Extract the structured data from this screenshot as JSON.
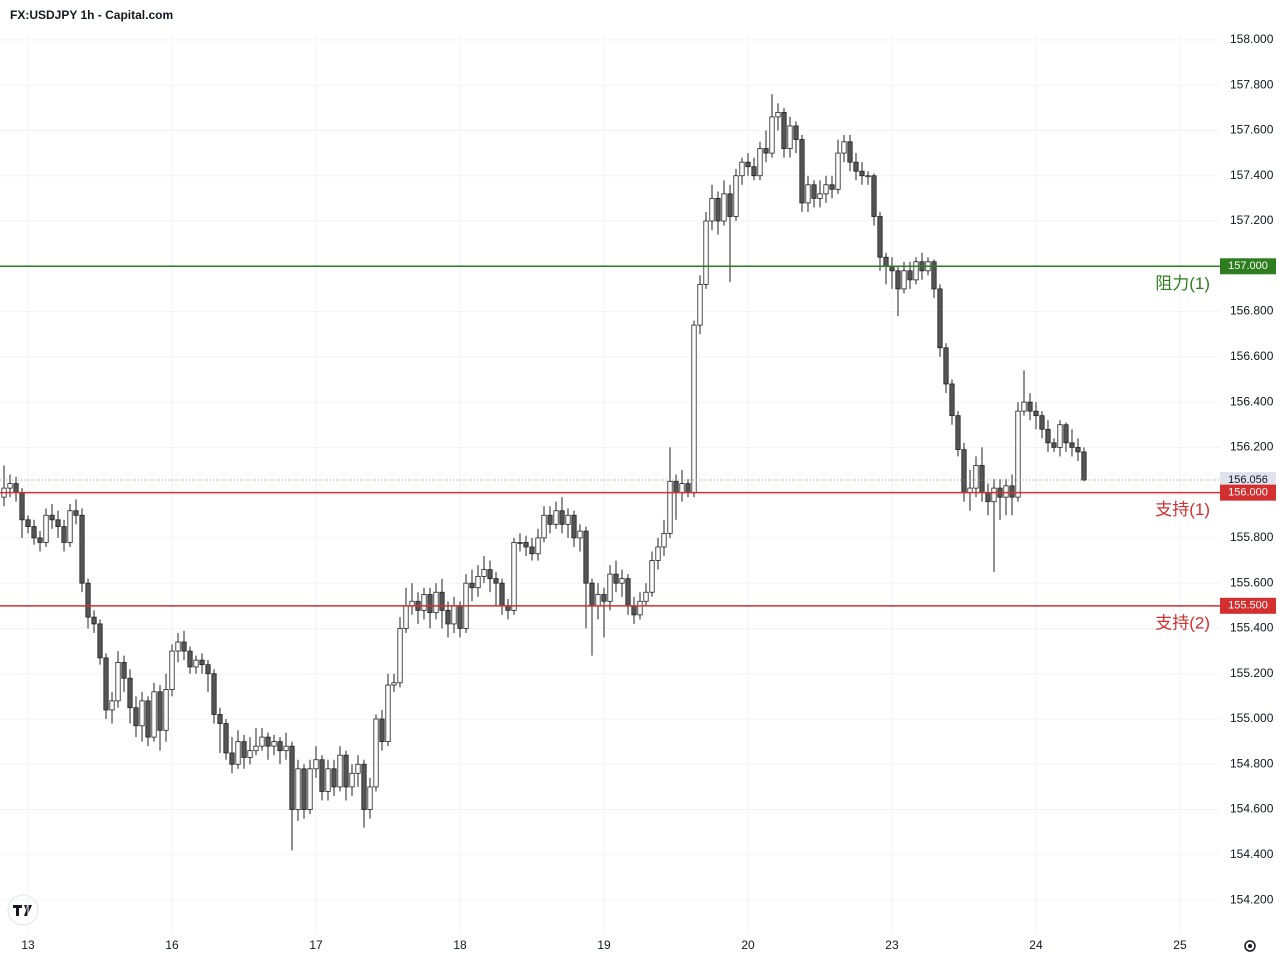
{
  "chart_data": {
    "type": "candlestick",
    "title": "FX:USDJPY 1h - Capital.com",
    "ylim": [
      154.059,
      158.035
    ],
    "yticks": [
      {
        "value": 154.2,
        "label": "154.200"
      },
      {
        "value": 154.4,
        "label": "154.400"
      },
      {
        "value": 154.6,
        "label": "154.600"
      },
      {
        "value": 154.8,
        "label": "154.800"
      },
      {
        "value": 155.0,
        "label": "155.000"
      },
      {
        "value": 155.2,
        "label": "155.200"
      },
      {
        "value": 155.4,
        "label": "155.400"
      },
      {
        "value": 155.6,
        "label": "155.600"
      },
      {
        "value": 155.8,
        "label": "155.800"
      },
      {
        "value": 156.0,
        "label": "156.000"
      },
      {
        "value": 156.2,
        "label": "156.200"
      },
      {
        "value": 156.4,
        "label": "156.400"
      },
      {
        "value": 156.6,
        "label": "156.600"
      },
      {
        "value": 156.8,
        "label": "156.800"
      },
      {
        "value": 157.0,
        "label": "157.000"
      },
      {
        "value": 157.2,
        "label": "157.200"
      },
      {
        "value": 157.4,
        "label": "157.400"
      },
      {
        "value": 157.6,
        "label": "157.600"
      },
      {
        "value": 157.8,
        "label": "157.800"
      },
      {
        "value": 158.0,
        "label": "158.000"
      }
    ],
    "xlim": [
      -0.67,
      202.67
    ],
    "xticks": [
      {
        "value": 4,
        "label": "13"
      },
      {
        "value": 28,
        "label": "16"
      },
      {
        "value": 52,
        "label": "17"
      },
      {
        "value": 76,
        "label": "18"
      },
      {
        "value": 100,
        "label": "19"
      },
      {
        "value": 124,
        "label": "20"
      },
      {
        "value": 148,
        "label": "23"
      },
      {
        "value": 172,
        "label": "24"
      },
      {
        "value": 196,
        "label": "25"
      }
    ],
    "grid": true,
    "up_color": "#ffffff",
    "down_color": "#555555",
    "outline_color": "#222222",
    "levels": [
      {
        "name": "阻力(1)",
        "value": 157.0,
        "label": "157.000",
        "color": "#2e7d1e"
      },
      {
        "name": "支持(1)",
        "value": 156.0,
        "label": "156.000",
        "color": "#d32f2f"
      },
      {
        "name": "支持(2)",
        "value": 155.5,
        "label": "155.500",
        "color": "#d32f2f"
      }
    ],
    "last_price": {
      "value": 156.056,
      "label": "156.056"
    },
    "open": [
      155.98,
      156.02,
      156.04,
      156.0,
      155.88,
      155.85,
      155.8,
      155.78,
      155.9,
      155.88,
      155.85,
      155.78,
      155.92,
      155.9,
      155.6,
      155.45,
      155.42,
      155.27,
      155.04,
      155.08,
      155.25,
      155.18,
      155.05,
      154.97,
      155.08,
      154.92,
      155.12,
      154.95,
      155.13,
      155.3,
      155.34,
      155.3,
      155.23,
      155.26,
      155.24,
      155.2,
      155.02,
      154.98,
      154.85,
      154.8,
      154.9,
      154.83,
      154.86,
      154.88,
      154.92,
      154.88,
      154.9,
      154.86,
      154.88,
      154.6,
      154.78,
      154.6,
      154.78,
      154.82,
      154.68,
      154.78,
      154.7,
      154.84,
      154.7,
      154.76,
      154.8,
      154.6,
      154.7,
      155.0,
      154.9,
      155.15,
      155.16,
      155.4,
      155.5,
      155.52,
      155.48,
      155.55,
      155.47,
      155.56,
      155.48,
      155.42,
      155.5,
      155.4,
      155.6,
      155.58,
      155.63,
      155.66,
      155.62,
      155.6,
      155.5,
      155.48,
      155.78,
      155.78,
      155.76,
      155.73,
      155.8,
      155.9,
      155.86,
      155.92,
      155.86,
      155.9,
      155.8,
      155.83,
      155.6,
      155.5,
      155.55,
      155.52,
      155.64,
      155.6,
      155.62,
      155.5,
      155.46,
      155.52,
      155.56,
      155.7,
      155.76,
      155.82,
      156.05,
      156.0,
      156.04,
      156.0,
      156.74,
      156.92,
      157.2,
      157.3,
      157.2,
      157.32,
      157.22,
      157.4,
      157.46,
      157.44,
      157.4,
      157.52,
      157.5,
      157.66,
      157.68,
      157.52,
      157.62,
      157.56,
      157.28,
      157.36,
      157.3,
      157.32,
      157.36,
      157.34,
      157.5,
      157.55,
      157.46,
      157.42,
      157.4,
      157.4,
      157.22,
      157.04,
      157.0,
      156.98,
      156.9,
      156.98,
      156.94,
      157.02,
      156.98,
      157.02,
      156.9,
      156.64,
      156.48,
      156.34,
      156.19,
      156.0,
      156.02,
      156.12,
      156.0,
      155.96,
      156.02,
      155.98,
      156.03,
      155.98,
      156.36,
      156.4,
      156.36,
      156.34,
      156.28,
      156.22,
      156.2,
      156.3,
      156.22,
      156.2,
      156.18
    ],
    "high": [
      156.12,
      156.08,
      156.07,
      156.02,
      155.9,
      155.88,
      155.83,
      155.93,
      155.95,
      155.92,
      155.88,
      155.95,
      155.97,
      155.93,
      155.62,
      155.48,
      155.44,
      155.29,
      155.12,
      155.3,
      155.28,
      155.22,
      155.1,
      155.12,
      155.1,
      155.16,
      155.15,
      155.2,
      155.33,
      155.38,
      155.39,
      155.32,
      155.28,
      155.29,
      155.26,
      155.22,
      155.05,
      155.0,
      154.92,
      154.95,
      154.93,
      154.92,
      154.96,
      154.96,
      154.94,
      154.93,
      154.92,
      154.94,
      154.9,
      154.82,
      154.8,
      154.82,
      154.88,
      154.84,
      154.82,
      154.82,
      154.88,
      154.86,
      154.8,
      154.84,
      154.82,
      154.74,
      155.02,
      155.04,
      155.2,
      155.2,
      155.45,
      155.58,
      155.6,
      155.56,
      155.58,
      155.58,
      155.6,
      155.62,
      155.52,
      155.54,
      155.52,
      155.64,
      155.66,
      155.68,
      155.72,
      155.7,
      155.65,
      155.62,
      155.53,
      155.8,
      155.82,
      155.81,
      155.8,
      155.84,
      155.94,
      155.94,
      155.96,
      155.98,
      155.93,
      155.92,
      155.86,
      155.85,
      155.62,
      155.6,
      155.58,
      155.68,
      155.7,
      155.66,
      155.64,
      155.54,
      155.56,
      155.6,
      155.74,
      155.8,
      155.88,
      156.2,
      156.08,
      156.1,
      156.06,
      156.76,
      156.96,
      157.24,
      157.36,
      157.33,
      157.38,
      157.36,
      157.43,
      157.48,
      157.5,
      157.48,
      157.55,
      157.6,
      157.76,
      157.72,
      157.7,
      157.66,
      157.64,
      157.58,
      157.4,
      157.38,
      157.38,
      157.4,
      157.4,
      157.56,
      157.58,
      157.58,
      157.5,
      157.46,
      157.42,
      157.41,
      157.24,
      157.06,
      157.04,
      157.0,
      157.02,
      157.02,
      157.04,
      157.06,
      157.04,
      157.03,
      156.92,
      156.66,
      156.5,
      156.36,
      156.22,
      156.1,
      156.16,
      156.2,
      156.04,
      156.06,
      156.06,
      156.06,
      156.08,
      156.4,
      156.54,
      156.44,
      156.4,
      156.36,
      156.32,
      156.24,
      156.32,
      156.31,
      156.28,
      156.24,
      156.2
    ],
    "low": [
      155.94,
      155.98,
      155.96,
      155.8,
      155.82,
      155.77,
      155.74,
      155.76,
      155.84,
      155.8,
      155.74,
      155.76,
      155.86,
      155.56,
      155.4,
      155.38,
      155.24,
      155.0,
      154.98,
      155.05,
      155.12,
      154.98,
      154.92,
      154.9,
      154.88,
      154.9,
      154.86,
      154.9,
      155.1,
      155.25,
      155.26,
      155.2,
      155.2,
      155.2,
      155.12,
      154.98,
      154.85,
      154.82,
      154.76,
      154.78,
      154.78,
      154.8,
      154.84,
      154.86,
      154.82,
      154.84,
      154.8,
      154.82,
      154.42,
      154.55,
      154.56,
      154.58,
      154.74,
      154.64,
      154.64,
      154.66,
      154.68,
      154.64,
      154.66,
      154.7,
      154.52,
      154.56,
      154.68,
      154.86,
      154.88,
      155.12,
      155.14,
      155.38,
      155.46,
      155.42,
      155.44,
      155.4,
      155.44,
      155.4,
      155.36,
      155.38,
      155.36,
      155.38,
      155.52,
      155.54,
      155.6,
      155.56,
      155.5,
      155.46,
      155.44,
      155.46,
      155.74,
      155.72,
      155.7,
      155.7,
      155.78,
      155.82,
      155.84,
      155.82,
      155.8,
      155.76,
      155.74,
      155.4,
      155.28,
      155.44,
      155.36,
      155.48,
      155.56,
      155.54,
      155.46,
      155.42,
      155.44,
      155.5,
      155.54,
      155.66,
      155.72,
      155.8,
      155.88,
      155.96,
      155.98,
      155.98,
      156.7,
      156.9,
      157.16,
      157.14,
      157.18,
      156.93,
      157.2,
      157.36,
      157.4,
      157.38,
      157.38,
      157.46,
      157.48,
      157.6,
      157.48,
      157.48,
      157.5,
      157.24,
      157.24,
      157.26,
      157.26,
      157.28,
      157.3,
      157.32,
      157.46,
      157.42,
      157.38,
      157.36,
      157.36,
      157.18,
      156.98,
      156.92,
      156.9,
      156.78,
      156.88,
      156.9,
      156.92,
      156.94,
      156.96,
      156.86,
      156.6,
      156.44,
      156.3,
      156.16,
      155.96,
      155.92,
      155.98,
      155.96,
      155.9,
      155.65,
      155.88,
      155.9,
      155.9,
      155.96,
      156.34,
      156.32,
      156.28,
      156.24,
      156.18,
      156.18,
      156.16,
      156.18,
      156.16,
      156.14,
      156.05
    ],
    "close": [
      156.02,
      156.04,
      156.0,
      155.88,
      155.85,
      155.8,
      155.78,
      155.9,
      155.88,
      155.85,
      155.78,
      155.92,
      155.9,
      155.6,
      155.45,
      155.42,
      155.27,
      155.04,
      155.08,
      155.25,
      155.18,
      155.05,
      154.97,
      155.08,
      154.92,
      155.12,
      154.95,
      155.13,
      155.3,
      155.34,
      155.3,
      155.23,
      155.26,
      155.24,
      155.2,
      155.02,
      154.98,
      154.85,
      154.8,
      154.9,
      154.83,
      154.86,
      154.88,
      154.92,
      154.88,
      154.9,
      154.86,
      154.88,
      154.6,
      154.78,
      154.6,
      154.78,
      154.82,
      154.68,
      154.78,
      154.7,
      154.84,
      154.7,
      154.76,
      154.8,
      154.6,
      154.7,
      155.0,
      154.9,
      155.15,
      155.16,
      155.4,
      155.5,
      155.52,
      155.48,
      155.55,
      155.47,
      155.56,
      155.48,
      155.42,
      155.5,
      155.4,
      155.6,
      155.58,
      155.63,
      155.66,
      155.62,
      155.6,
      155.5,
      155.48,
      155.78,
      155.78,
      155.76,
      155.73,
      155.8,
      155.9,
      155.86,
      155.92,
      155.86,
      155.9,
      155.8,
      155.83,
      155.6,
      155.5,
      155.55,
      155.52,
      155.64,
      155.6,
      155.62,
      155.5,
      155.46,
      155.52,
      155.56,
      155.7,
      155.76,
      155.82,
      156.05,
      156.0,
      156.04,
      156.0,
      156.74,
      156.92,
      157.2,
      157.3,
      157.2,
      157.32,
      157.22,
      157.4,
      157.46,
      157.44,
      157.4,
      157.52,
      157.5,
      157.66,
      157.68,
      157.52,
      157.62,
      157.56,
      157.28,
      157.36,
      157.3,
      157.32,
      157.36,
      157.34,
      157.5,
      157.55,
      157.46,
      157.42,
      157.4,
      157.4,
      157.22,
      157.04,
      157.0,
      156.98,
      156.9,
      156.98,
      156.94,
      157.02,
      156.98,
      157.02,
      156.9,
      156.64,
      156.48,
      156.34,
      156.19,
      156.0,
      156.02,
      156.12,
      156.0,
      155.96,
      156.02,
      155.98,
      156.03,
      155.98,
      156.36,
      156.4,
      156.36,
      156.34,
      156.28,
      156.22,
      156.2,
      156.3,
      156.22,
      156.2,
      156.18,
      156.056
    ]
  }
}
